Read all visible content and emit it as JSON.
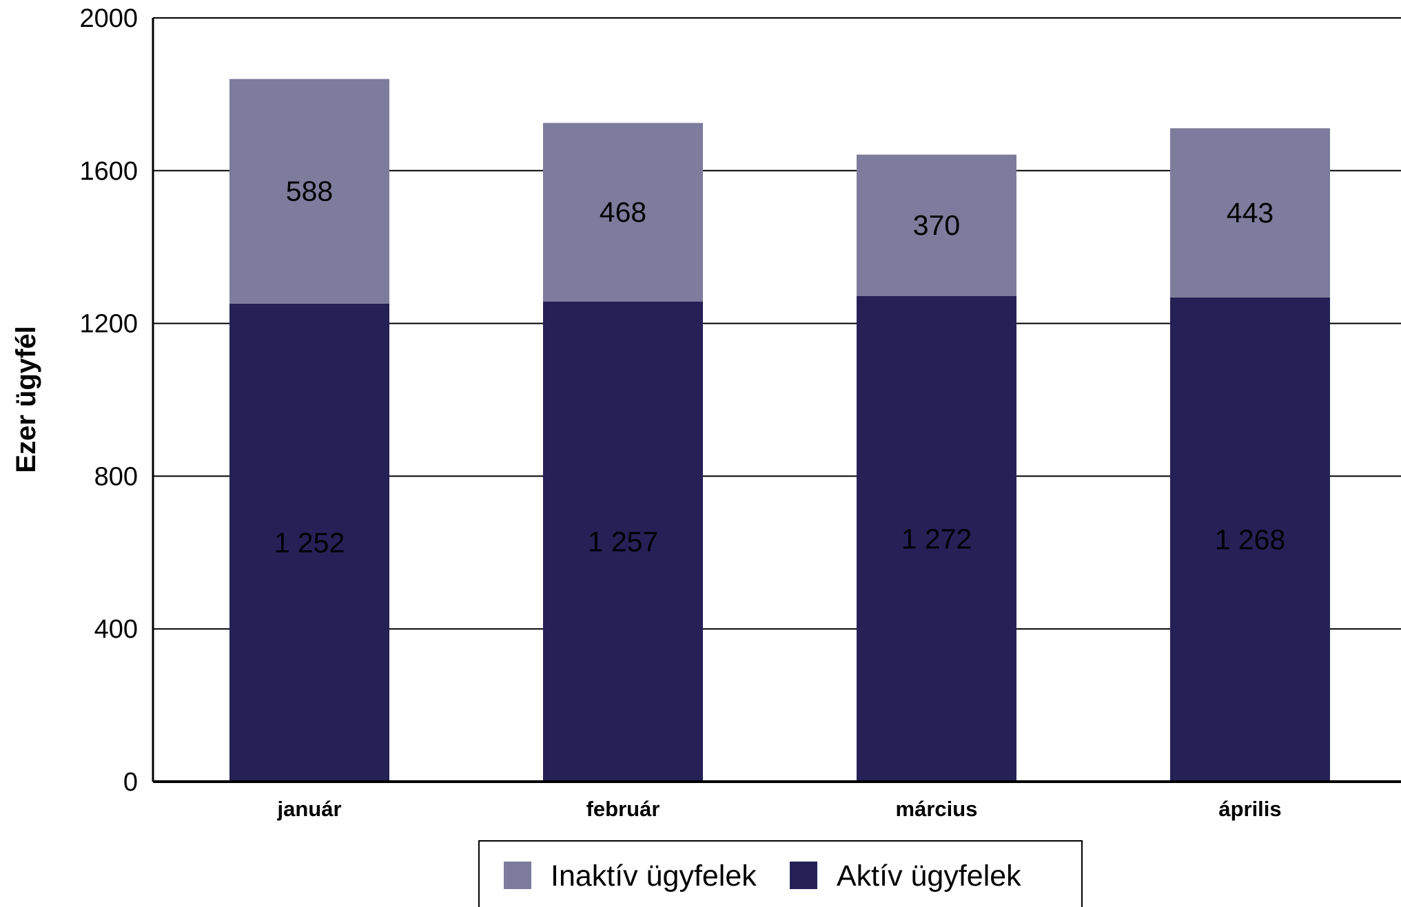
{
  "chart_data": {
    "type": "bar",
    "stacked": true,
    "categories": [
      "január",
      "február",
      "március",
      "április"
    ],
    "series": [
      {
        "name": "Aktív ügyfelek",
        "values": [
          1252,
          1257,
          1272,
          1268
        ],
        "labels": [
          "1 252",
          "1 257",
          "1 272",
          "1 268"
        ],
        "color": "#252157"
      },
      {
        "name": "Inaktív ügyfelek",
        "values": [
          588,
          468,
          370,
          443
        ],
        "labels": [
          "588",
          "468",
          "370",
          "443"
        ],
        "color": "#7d7c9c"
      }
    ],
    "ylabel": "Ezer ügyfél",
    "ylim": [
      0,
      2000
    ],
    "yticks": [
      0,
      400,
      800,
      1200,
      1600,
      2000
    ],
    "grid": true,
    "legend": {
      "position": "bottom",
      "order": [
        "Inaktív ügyfelek",
        "Aktív ügyfelek"
      ]
    }
  }
}
